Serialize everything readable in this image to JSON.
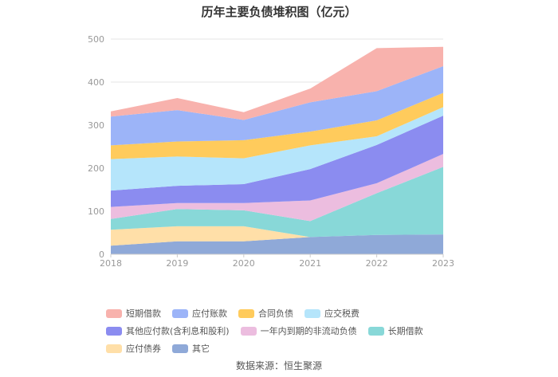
{
  "chart_data": {
    "type": "area",
    "stacked": true,
    "title": "历年主要负债堆积图（亿元）",
    "x": [
      "2018",
      "2019",
      "2020",
      "2021",
      "2022",
      "2023"
    ],
    "ylim": [
      0,
      500
    ],
    "yticks": [
      "0",
      "100",
      "200",
      "300",
      "400",
      "500"
    ],
    "grid": true,
    "legend_position": "bottom",
    "series": [
      {
        "name": "其它",
        "color": "#8fa9d8",
        "values": [
          20,
          30,
          30,
          40,
          45,
          46
        ]
      },
      {
        "name": "应付债券",
        "color": "#ffdfa8",
        "values": [
          37,
          35,
          35,
          0,
          0,
          0
        ]
      },
      {
        "name": "长期借款",
        "color": "#88d8d8",
        "values": [
          25,
          40,
          37,
          37,
          97,
          157
        ]
      },
      {
        "name": "一年内到期的非流动负债",
        "color": "#ecbddf",
        "values": [
          28,
          14,
          17,
          48,
          23,
          30
        ]
      },
      {
        "name": "其他应付款(含利息和股利)",
        "color": "#8b8cf0",
        "values": [
          38,
          40,
          44,
          73,
          89,
          89
        ]
      },
      {
        "name": "应交税费",
        "color": "#b5e5fb",
        "values": [
          73,
          68,
          60,
          55,
          20,
          20
        ]
      },
      {
        "name": "合同负债",
        "color": "#ffcb5c",
        "values": [
          32,
          35,
          42,
          32,
          37,
          33
        ]
      },
      {
        "name": "应付账款",
        "color": "#9cb4f8",
        "values": [
          67,
          73,
          47,
          68,
          68,
          62
        ]
      },
      {
        "name": "短期借款",
        "color": "#f8b2ad",
        "values": [
          12,
          28,
          18,
          32,
          100,
          45
        ]
      }
    ],
    "source": "数据来源：恒生聚源"
  }
}
